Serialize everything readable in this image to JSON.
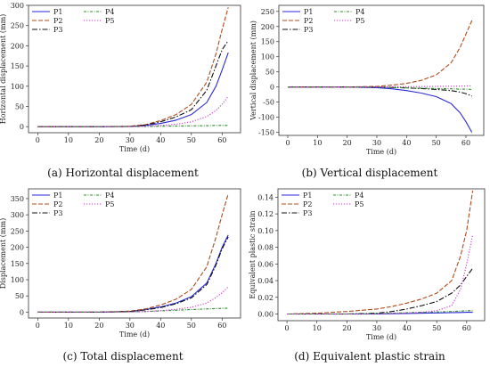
{
  "figure": {
    "captions": [
      "(a) Horizontal displacement",
      "(b) Vertical displacement",
      "(c) Total displacement",
      "(d) Equivalent plastic strain"
    ]
  },
  "series_styles": [
    {
      "name": "P1",
      "color": "#2a2adc",
      "dash": ""
    },
    {
      "name": "P2",
      "color": "#b04a1a",
      "dash": "5,2"
    },
    {
      "name": "P3",
      "color": "#111111",
      "dash": "6,2,1.5,2"
    },
    {
      "name": "P4",
      "color": "#2e8b2e",
      "dash": "3,1.5,1,1.5"
    },
    {
      "name": "P5",
      "color": "#cc33cc",
      "dash": "1.2,1.8"
    }
  ],
  "chart_data": [
    {
      "type": "line",
      "caption": "(a) Horizontal displacement",
      "xlabel": "Time (d)",
      "ylabel": "Horizontal displacement (mm)",
      "xlim": [
        -3,
        66
      ],
      "ylim": [
        -15,
        300
      ],
      "xticks": [
        0,
        10,
        20,
        30,
        40,
        50,
        60
      ],
      "yticks": [
        0,
        50,
        100,
        150,
        200,
        250,
        300
      ],
      "legend": {
        "placement": "top-left",
        "columns": [
          [
            "P1",
            "P2",
            "P3"
          ],
          [
            "P4",
            "P5"
          ]
        ]
      },
      "x": [
        0,
        10,
        20,
        30,
        35,
        40,
        45,
        50,
        55,
        58,
        60,
        62
      ],
      "series": [
        {
          "name": "P1",
          "values": [
            0,
            0,
            0,
            0.5,
            3,
            8,
            16,
            30,
            60,
            100,
            140,
            183
          ]
        },
        {
          "name": "P2",
          "values": [
            0,
            0,
            0,
            1,
            5,
            15,
            30,
            55,
            110,
            180,
            240,
            295
          ]
        },
        {
          "name": "P3",
          "values": [
            0,
            0,
            0,
            0.5,
            4,
            12,
            24,
            42,
            90,
            150,
            190,
            213
          ]
        },
        {
          "name": "P4",
          "values": [
            0,
            0,
            0,
            0.2,
            0.5,
            1,
            1.5,
            2,
            2.5,
            3,
            3,
            3
          ]
        },
        {
          "name": "P5",
          "values": [
            0,
            0,
            0,
            0.3,
            1,
            3,
            6,
            12,
            25,
            40,
            55,
            75
          ]
        }
      ]
    },
    {
      "type": "line",
      "caption": "(b) Vertical displacement",
      "xlabel": "Time (d)",
      "ylabel": "Vertical displacement (mm)",
      "xlim": [
        -3,
        66
      ],
      "ylim": [
        -160,
        270
      ],
      "xticks": [
        0,
        10,
        20,
        30,
        40,
        50,
        60
      ],
      "yticks": [
        -150,
        -100,
        -50,
        0,
        50,
        100,
        150,
        200,
        250
      ],
      "legend": {
        "placement": "top-left",
        "columns": [
          [
            "P1",
            "P2",
            "P3"
          ],
          [
            "P4",
            "P5"
          ]
        ]
      },
      "x": [
        0,
        10,
        20,
        30,
        35,
        40,
        45,
        50,
        55,
        58,
        60,
        62
      ],
      "series": [
        {
          "name": "P1",
          "values": [
            0,
            0,
            0,
            -2,
            -6,
            -12,
            -20,
            -32,
            -55,
            -85,
            -115,
            -150
          ]
        },
        {
          "name": "P2",
          "values": [
            0,
            0,
            0,
            2,
            6,
            12,
            22,
            40,
            80,
            130,
            175,
            220
          ]
        },
        {
          "name": "P3",
          "values": [
            0,
            0,
            0,
            -0.5,
            -1.5,
            -3,
            -5,
            -8,
            -12,
            -17,
            -22,
            -30
          ]
        },
        {
          "name": "P4",
          "values": [
            0,
            0,
            0,
            -0.5,
            -1.5,
            -3,
            -4,
            -5,
            -6,
            -7,
            -7,
            -8
          ]
        },
        {
          "name": "P5",
          "values": [
            0,
            0,
            0,
            0,
            0.5,
            1,
            1.5,
            2,
            2.5,
            3,
            3.5,
            4
          ]
        }
      ]
    },
    {
      "type": "line",
      "caption": "(c) Total displacement",
      "xlabel": "Time (d)",
      "ylabel": "Displacement (mm)",
      "xlim": [
        -3,
        66
      ],
      "ylim": [
        -18,
        380
      ],
      "xticks": [
        0,
        10,
        20,
        30,
        40,
        50,
        60
      ],
      "yticks": [
        0,
        50,
        100,
        150,
        200,
        250,
        300,
        350
      ],
      "legend": {
        "placement": "top-left",
        "columns": [
          [
            "P1",
            "P2",
            "P3"
          ],
          [
            "P4",
            "P5"
          ]
        ]
      },
      "x": [
        0,
        10,
        20,
        30,
        35,
        40,
        45,
        50,
        55,
        58,
        60,
        62
      ],
      "series": [
        {
          "name": "P1",
          "values": [
            0,
            0,
            0,
            2,
            8,
            16,
            28,
            48,
            90,
            150,
            200,
            238
          ]
        },
        {
          "name": "P2",
          "values": [
            0,
            0,
            0,
            3,
            10,
            22,
            40,
            70,
            140,
            230,
            300,
            365
          ]
        },
        {
          "name": "P3",
          "values": [
            0,
            0,
            0,
            2,
            7,
            14,
            26,
            44,
            85,
            145,
            195,
            232
          ]
        },
        {
          "name": "P4",
          "values": [
            0,
            0,
            0,
            1,
            2,
            4,
            6,
            8,
            10,
            11,
            12,
            12
          ]
        },
        {
          "name": "P5",
          "values": [
            0,
            0,
            0,
            1,
            2,
            5,
            9,
            15,
            28,
            45,
            60,
            78
          ]
        }
      ]
    },
    {
      "type": "line",
      "caption": "(d) Equivalent plastic strain",
      "xlabel": "Time (d)",
      "ylabel": "Equivalent plastic strain",
      "xlim": [
        -3,
        66
      ],
      "ylim": [
        -0.008,
        0.15
      ],
      "xticks": [
        0,
        10,
        20,
        30,
        40,
        50,
        60
      ],
      "yticks": [
        0.0,
        0.02,
        0.04,
        0.06,
        0.08,
        0.1,
        0.12,
        0.14
      ],
      "ytick_labels": [
        "0.00",
        "0.02",
        "0.04",
        "0.06",
        "0.08",
        "0.10",
        "0.12",
        "0.14"
      ],
      "legend": {
        "placement": "top-left",
        "columns": [
          [
            "P1",
            "P2",
            "P3"
          ],
          [
            "P4",
            "P5"
          ]
        ]
      },
      "x": [
        0,
        10,
        20,
        30,
        35,
        40,
        45,
        50,
        55,
        58,
        60,
        62
      ],
      "series": [
        {
          "name": "P1",
          "values": [
            0,
            0,
            0,
            0,
            0.0003,
            0.0006,
            0.001,
            0.0013,
            0.0016,
            0.0018,
            0.002,
            0.002
          ]
        },
        {
          "name": "P2",
          "values": [
            0,
            0.001,
            0.003,
            0.006,
            0.009,
            0.013,
            0.018,
            0.025,
            0.04,
            0.07,
            0.1,
            0.148
          ]
        },
        {
          "name": "P3",
          "values": [
            0,
            0,
            0,
            0.001,
            0.003,
            0.006,
            0.01,
            0.015,
            0.025,
            0.035,
            0.045,
            0.055
          ]
        },
        {
          "name": "P4",
          "values": [
            0,
            0,
            0,
            0.0005,
            0.001,
            0.0015,
            0.002,
            0.0025,
            0.003,
            0.0035,
            0.004,
            0.004
          ]
        },
        {
          "name": "P5",
          "values": [
            0,
            0,
            0,
            0,
            0.0005,
            0.001,
            0.002,
            0.004,
            0.01,
            0.03,
            0.06,
            0.095
          ]
        }
      ]
    }
  ]
}
